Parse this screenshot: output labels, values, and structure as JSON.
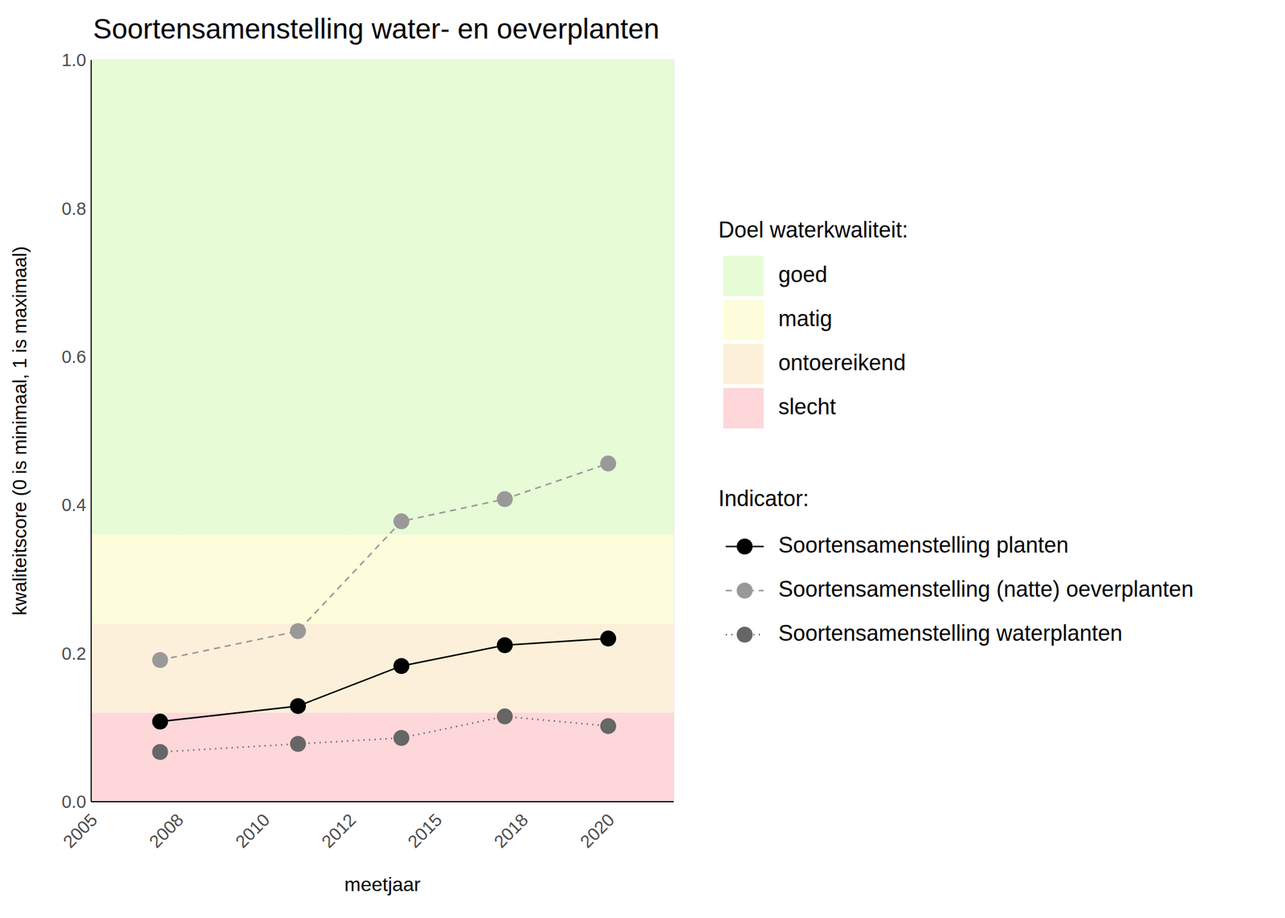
{
  "chart_data": {
    "type": "line",
    "title": "Soortensamenstelling water- en oeverplanten",
    "x_label": "meetjaar",
    "y_label": "kwaliteitscore (0 is minimaal, 1 is maximaal)",
    "x": [
      2007,
      2011,
      2014,
      2017,
      2020
    ],
    "series": [
      {
        "name": "Soortensamenstelling planten",
        "color": "#000000",
        "line_style": "solid",
        "marker": "circle",
        "values": [
          0.108,
          0.129,
          0.183,
          0.211,
          0.22
        ]
      },
      {
        "name": "Soortensamenstelling (natte) oeverplanten",
        "color": "#999999",
        "line_style": "dashed",
        "marker": "circle",
        "values": [
          0.191,
          0.23,
          0.378,
          0.408,
          0.456
        ]
      },
      {
        "name": "Soortensamenstelling waterplanten",
        "color": "#666666",
        "line_style": "dotted",
        "marker": "circle",
        "values": [
          0.067,
          0.078,
          0.086,
          0.115,
          0.102
        ]
      }
    ],
    "xlim": [
      2005,
      2021.9
    ],
    "xticks": [
      2005,
      {
        "value": 2007.5,
        "label": "2008"
      },
      2010,
      {
        "value": 2012.5,
        "label": "2012"
      },
      2015,
      {
        "value": 2017.5,
        "label": "2018"
      },
      2020
    ],
    "ylim": [
      0,
      1
    ],
    "yticks": [
      {
        "value": 0,
        "label": "0.0"
      },
      {
        "value": 0.2,
        "label": "0.2"
      },
      {
        "value": 0.4,
        "label": "0.4"
      },
      {
        "value": 0.6,
        "label": "0.6"
      },
      {
        "value": 0.8,
        "label": "0.8"
      },
      {
        "value": 1,
        "label": "1.0"
      }
    ],
    "grid": true,
    "legend": "right",
    "bands_title": "Doel waterkwaliteit:",
    "bands": [
      {
        "name": "goed",
        "from": 0.36,
        "to": 1,
        "color": "#e6fbd6"
      },
      {
        "name": "matig",
        "from": 0.24,
        "to": 0.36,
        "color": "#fdfddb"
      },
      {
        "name": "ontoereikend",
        "from": 0.12,
        "to": 0.24,
        "color": "#fdf0da"
      },
      {
        "name": "slecht",
        "from": 0,
        "to": 0.12,
        "color": "#fdd7d9"
      }
    ],
    "legend_title": "Indicator:"
  }
}
